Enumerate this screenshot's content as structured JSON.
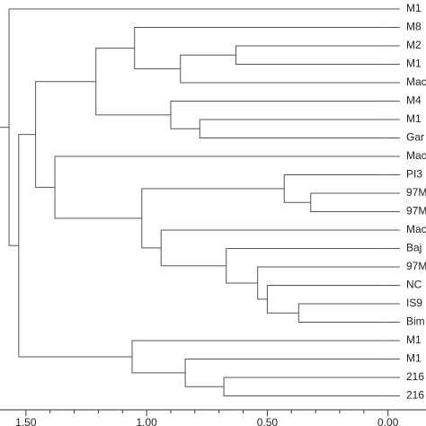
{
  "chart_data": {
    "type": "dendrogram",
    "leaves": [
      "M1",
      "M8",
      "M2",
      "M1",
      "Mac",
      "M4",
      "M1",
      "Gar",
      "Mac",
      "PI3",
      "97M",
      "97M",
      "Mac",
      "Baj",
      "97M",
      "NC",
      "IS9",
      "Bim",
      "M1",
      "M1",
      "216",
      "216"
    ],
    "merges": [
      {
        "children": [
          2,
          3
        ],
        "height": 0.63
      },
      {
        "children": [
          4,
          22
        ],
        "height": 0.86
      },
      {
        "children": [
          1,
          23
        ],
        "height": 1.05
      },
      {
        "children": [
          6,
          7
        ],
        "height": 0.78
      },
      {
        "children": [
          5,
          25
        ],
        "height": 0.9
      },
      {
        "children": [
          24,
          26
        ],
        "height": 1.21
      },
      {
        "children": [
          10,
          11
        ],
        "height": 0.32
      },
      {
        "children": [
          9,
          28
        ],
        "height": 0.43
      },
      {
        "children": [
          16,
          17
        ],
        "height": 0.37
      },
      {
        "children": [
          15,
          30
        ],
        "height": 0.5
      },
      {
        "children": [
          14,
          31
        ],
        "height": 0.54
      },
      {
        "children": [
          13,
          32
        ],
        "height": 0.67
      },
      {
        "children": [
          12,
          33
        ],
        "height": 0.94
      },
      {
        "children": [
          29,
          34
        ],
        "height": 1.02
      },
      {
        "children": [
          8,
          35
        ],
        "height": 1.38
      },
      {
        "children": [
          27,
          36
        ],
        "height": 1.46
      },
      {
        "children": [
          20,
          21
        ],
        "height": 0.68
      },
      {
        "children": [
          19,
          38
        ],
        "height": 0.84
      },
      {
        "children": [
          18,
          39
        ],
        "height": 1.06
      },
      {
        "children": [
          37,
          40
        ],
        "height": 1.53
      },
      {
        "children": [
          0,
          41
        ],
        "height": 1.57
      }
    ],
    "xlim": [
      1.6,
      -0.15
    ],
    "xticks": [
      {
        "value": 1.5,
        "label": "1.50"
      },
      {
        "value": 1.0,
        "label": "1.00"
      },
      {
        "value": 0.5,
        "label": "0.50"
      },
      {
        "value": 0.0,
        "label": "0.00"
      }
    ],
    "xminorticks": [
      1.4,
      1.3,
      1.2,
      1.1,
      0.9,
      0.8,
      0.7,
      0.6,
      0.4,
      0.3,
      0.2,
      0.1
    ],
    "color": "#555555"
  }
}
